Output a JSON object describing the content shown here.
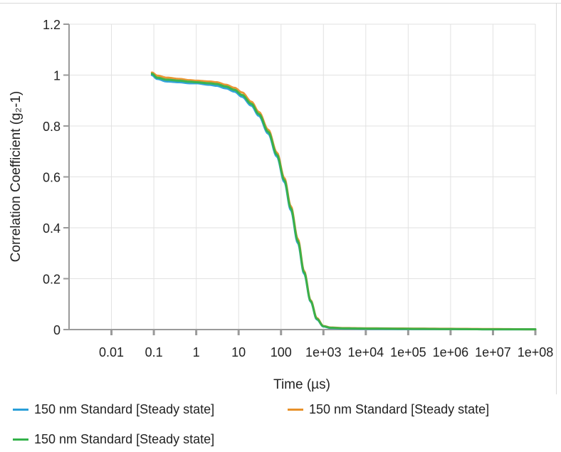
{
  "chart_data": {
    "type": "line",
    "xscale": "log",
    "xlabel": "Time (µs)",
    "ylabel": "Correlation Coefficient (g₂-1)",
    "ylim": [
      0,
      1.2
    ],
    "xlim": [
      0.001,
      100000000
    ],
    "grid": true,
    "legend_position": "bottom",
    "y_ticks": [
      "0",
      "0.2",
      "0.4",
      "0.6",
      "0.8",
      "1",
      "1.2"
    ],
    "x_ticks": [
      "0.01",
      "0.1",
      "1",
      "10",
      "100",
      "1e+03",
      "1e+04",
      "1e+05",
      "1e+06",
      "1e+07",
      "1e+08"
    ],
    "series": [
      {
        "name": "150 nm Standard [Steady state]",
        "color": "#2a9fd8",
        "points": [
          [
            0.09,
            1.0
          ],
          [
            0.12,
            0.985
          ],
          [
            0.2,
            0.975
          ],
          [
            0.4,
            0.972
          ],
          [
            0.7,
            0.968
          ],
          [
            1,
            0.968
          ],
          [
            2,
            0.962
          ],
          [
            3,
            0.958
          ],
          [
            5,
            0.948
          ],
          [
            8,
            0.935
          ],
          [
            12,
            0.915
          ],
          [
            20,
            0.88
          ],
          [
            30,
            0.84
          ],
          [
            50,
            0.77
          ],
          [
            80,
            0.68
          ],
          [
            120,
            0.58
          ],
          [
            170,
            0.47
          ],
          [
            250,
            0.34
          ],
          [
            350,
            0.22
          ],
          [
            500,
            0.11
          ],
          [
            700,
            0.04
          ],
          [
            1000,
            0.012
          ],
          [
            1500,
            0.006
          ],
          [
            3000,
            0.004
          ],
          [
            10000,
            0.003
          ],
          [
            100000,
            0.002
          ],
          [
            1000000,
            0.002
          ],
          [
            10000000,
            0.001
          ],
          [
            100000000,
            0.001
          ]
        ]
      },
      {
        "name": "150 nm Standard [Steady state]",
        "color": "#e8912a",
        "points": [
          [
            0.09,
            1.01
          ],
          [
            0.12,
            0.998
          ],
          [
            0.2,
            0.99
          ],
          [
            0.4,
            0.985
          ],
          [
            0.7,
            0.98
          ],
          [
            1,
            0.978
          ],
          [
            2,
            0.975
          ],
          [
            3,
            0.972
          ],
          [
            5,
            0.962
          ],
          [
            8,
            0.95
          ],
          [
            12,
            0.932
          ],
          [
            20,
            0.895
          ],
          [
            30,
            0.855
          ],
          [
            50,
            0.785
          ],
          [
            80,
            0.695
          ],
          [
            120,
            0.595
          ],
          [
            170,
            0.485
          ],
          [
            250,
            0.355
          ],
          [
            350,
            0.23
          ],
          [
            500,
            0.115
          ],
          [
            700,
            0.045
          ],
          [
            1000,
            0.014
          ],
          [
            1500,
            0.008
          ],
          [
            3000,
            0.006
          ],
          [
            10000,
            0.005
          ],
          [
            100000,
            0.004
          ],
          [
            1000000,
            0.003
          ],
          [
            10000000,
            0.002
          ],
          [
            100000000,
            0.001
          ]
        ]
      },
      {
        "name": "150 nm Standard [Steady state]",
        "color": "#33b24a",
        "points": [
          [
            0.09,
            1.005
          ],
          [
            0.12,
            0.99
          ],
          [
            0.2,
            0.982
          ],
          [
            0.4,
            0.978
          ],
          [
            0.7,
            0.974
          ],
          [
            1,
            0.972
          ],
          [
            2,
            0.968
          ],
          [
            3,
            0.965
          ],
          [
            5,
            0.955
          ],
          [
            8,
            0.942
          ],
          [
            12,
            0.922
          ],
          [
            20,
            0.887
          ],
          [
            30,
            0.847
          ],
          [
            50,
            0.777
          ],
          [
            80,
            0.687
          ],
          [
            120,
            0.587
          ],
          [
            170,
            0.477
          ],
          [
            250,
            0.347
          ],
          [
            350,
            0.225
          ],
          [
            500,
            0.112
          ],
          [
            700,
            0.042
          ],
          [
            1000,
            0.013
          ],
          [
            1500,
            0.007
          ],
          [
            3000,
            0.005
          ],
          [
            10000,
            0.004
          ],
          [
            100000,
            0.003
          ],
          [
            1000000,
            0.002
          ],
          [
            10000000,
            0.001
          ],
          [
            100000000,
            0.001
          ]
        ]
      }
    ]
  }
}
